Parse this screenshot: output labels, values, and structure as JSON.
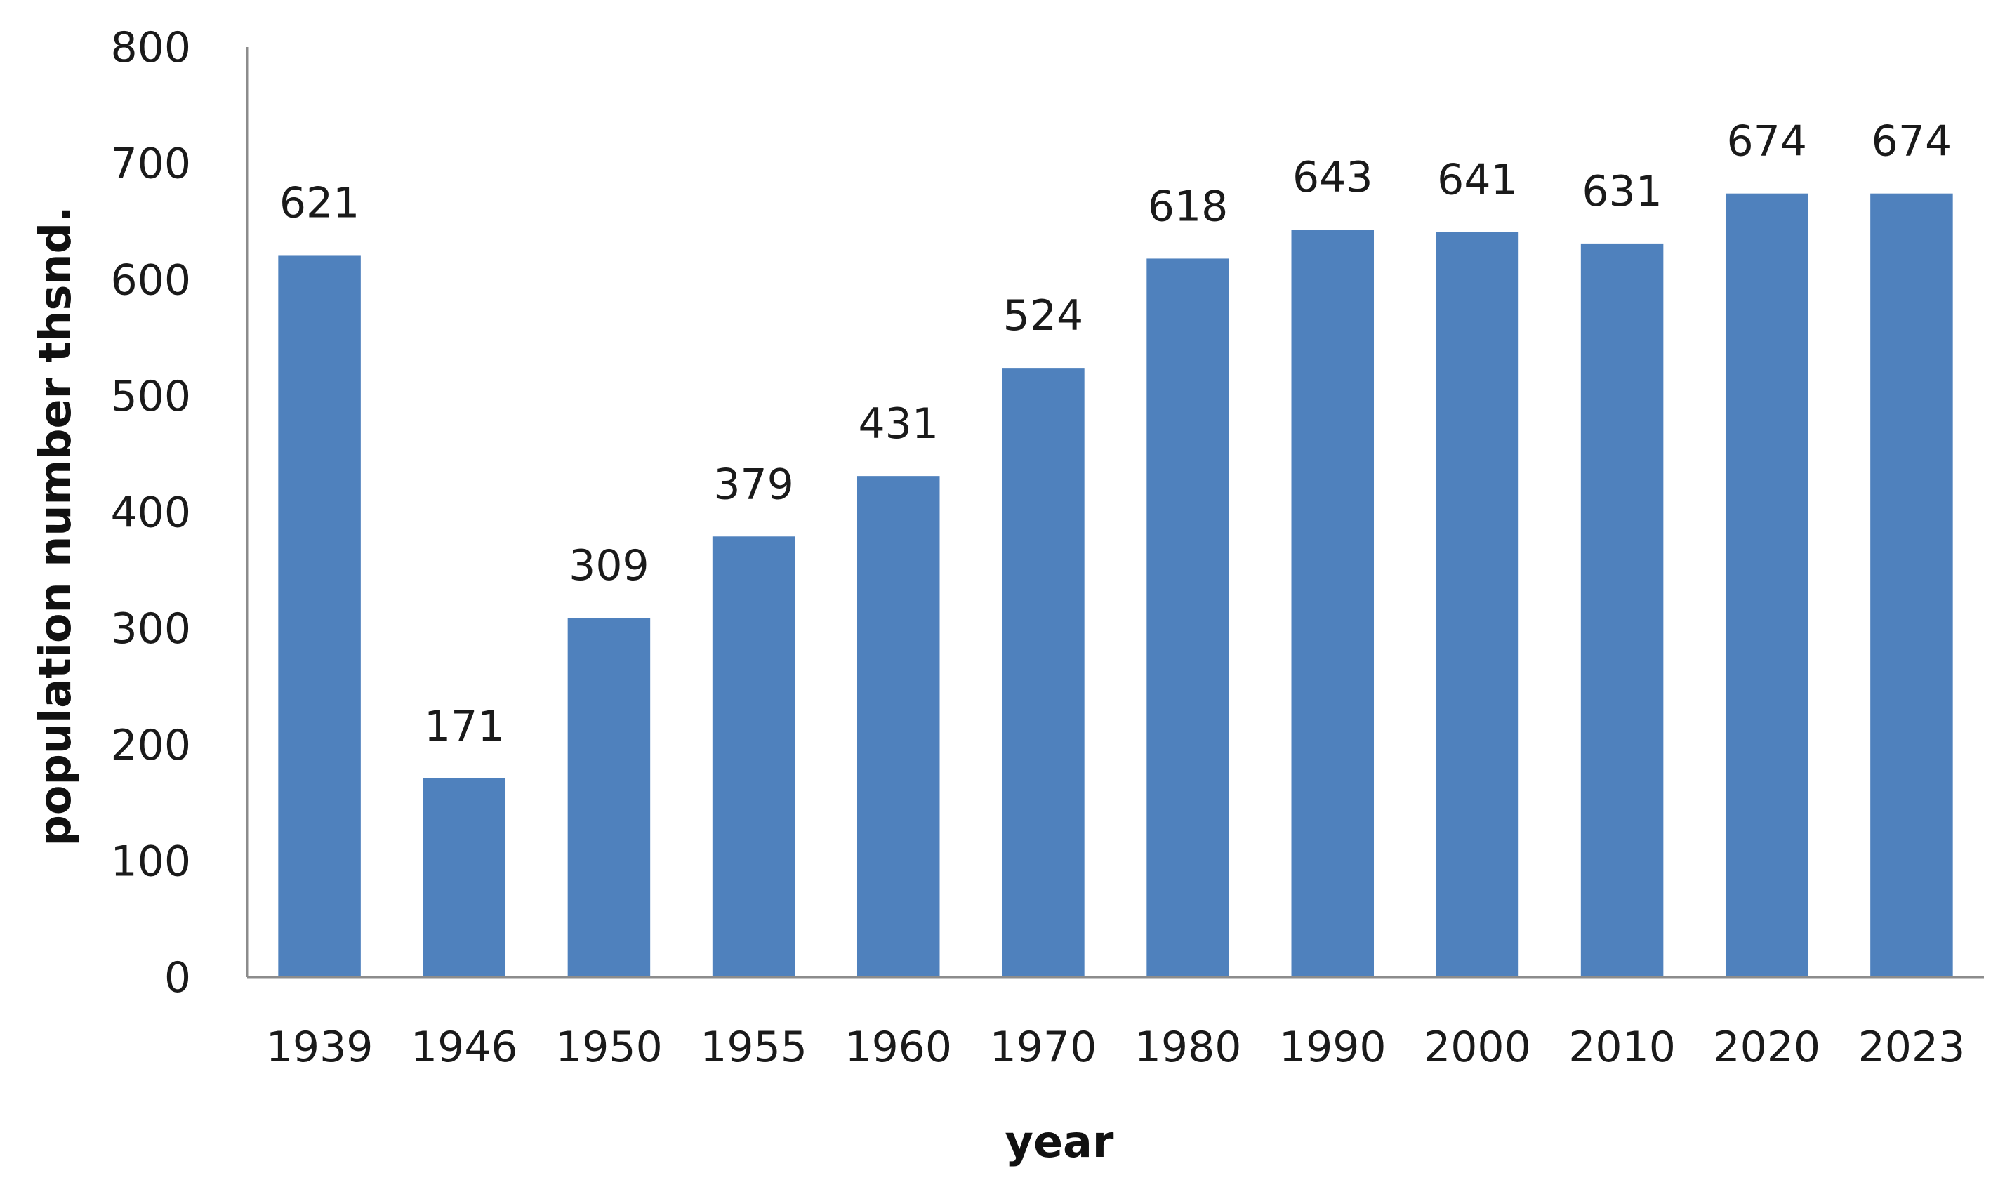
{
  "chart_data": {
    "type": "bar",
    "categories": [
      "1939",
      "1946",
      "1950",
      "1955",
      "1960",
      "1970",
      "1980",
      "1990",
      "2000",
      "2010",
      "2020",
      "2023"
    ],
    "values": [
      621,
      171,
      309,
      379,
      431,
      524,
      618,
      643,
      641,
      631,
      674,
      674
    ],
    "data_labels": [
      "621",
      "171",
      "309",
      "379",
      "431",
      "524",
      "618",
      "643",
      "641",
      "631",
      "674",
      "674"
    ],
    "xlabel": "year",
    "ylabel": "population number thsnd.",
    "ylim": [
      0,
      800
    ],
    "yticks": [
      0,
      100,
      200,
      300,
      400,
      500,
      600,
      700,
      800
    ],
    "ytick_labels": [
      "0",
      "100",
      "200",
      "300",
      "400",
      "500",
      "600",
      "700",
      "800"
    ],
    "grid": false,
    "legend": "none",
    "bar_color": "#4f81bd"
  }
}
